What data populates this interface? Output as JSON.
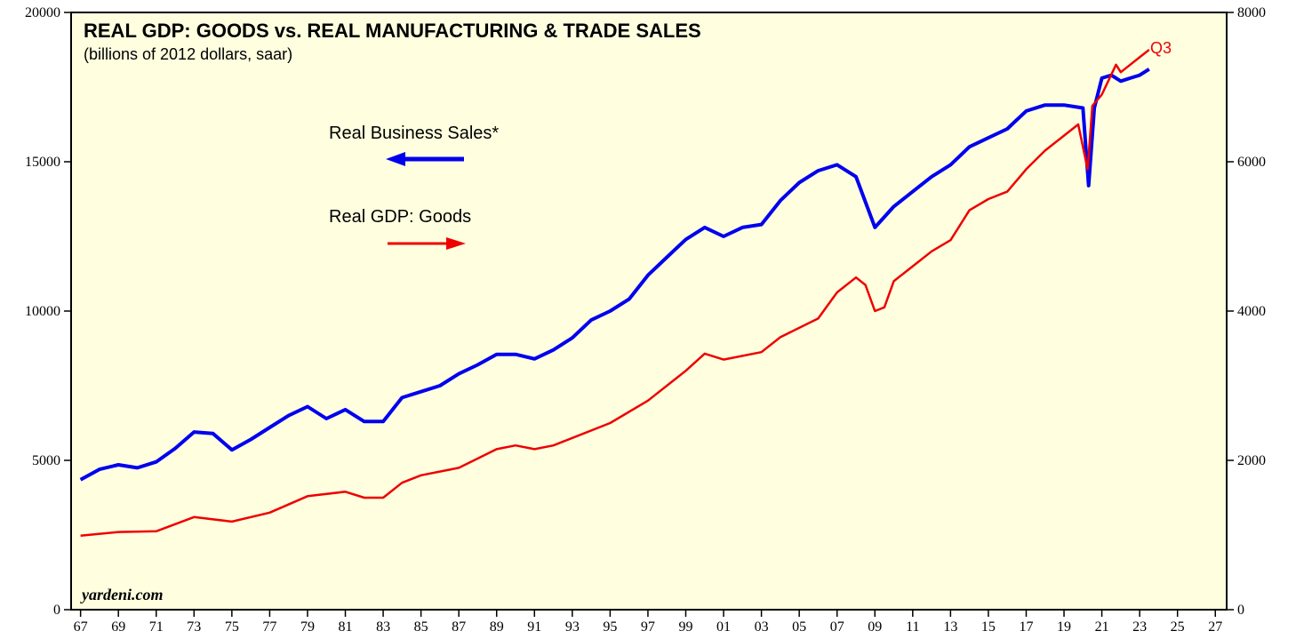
{
  "chart_data": {
    "type": "line",
    "title": "REAL GDP: GOODS vs. REAL MANUFACTURING & TRADE SALES",
    "subtitle": "(billions of 2012 dollars, saar)",
    "annotations": [
      "Real Business Sales*",
      "Real GDP: Goods",
      "Q3",
      "yardeni.com"
    ],
    "xlim": [
      1966.5,
      2027.6
    ],
    "xticks": [
      {
        "value": 1967,
        "label": "67"
      },
      {
        "value": 1969,
        "label": "69"
      },
      {
        "value": 1971,
        "label": "71"
      },
      {
        "value": 1973,
        "label": "73"
      },
      {
        "value": 1975,
        "label": "75"
      },
      {
        "value": 1977,
        "label": "77"
      },
      {
        "value": 1979,
        "label": "79"
      },
      {
        "value": 1981,
        "label": "81"
      },
      {
        "value": 1983,
        "label": "83"
      },
      {
        "value": 1985,
        "label": "85"
      },
      {
        "value": 1987,
        "label": "87"
      },
      {
        "value": 1989,
        "label": "89"
      },
      {
        "value": 1991,
        "label": "91"
      },
      {
        "value": 1993,
        "label": "93"
      },
      {
        "value": 1995,
        "label": "95"
      },
      {
        "value": 1997,
        "label": "97"
      },
      {
        "value": 1999,
        "label": "99"
      },
      {
        "value": 2001,
        "label": "01"
      },
      {
        "value": 2003,
        "label": "03"
      },
      {
        "value": 2005,
        "label": "05"
      },
      {
        "value": 2007,
        "label": "07"
      },
      {
        "value": 2009,
        "label": "09"
      },
      {
        "value": 2011,
        "label": "11"
      },
      {
        "value": 2013,
        "label": "13"
      },
      {
        "value": 2015,
        "label": "15"
      },
      {
        "value": 2017,
        "label": "17"
      },
      {
        "value": 2019,
        "label": "19"
      },
      {
        "value": 2021,
        "label": "21"
      },
      {
        "value": 2023,
        "label": "23"
      },
      {
        "value": 2025,
        "label": "25"
      },
      {
        "value": 2027,
        "label": "27"
      }
    ],
    "ylim": [
      0,
      20000
    ],
    "yticks": [
      0,
      5000,
      10000,
      15000,
      20000
    ],
    "y2lim": [
      0,
      8000
    ],
    "y2ticks": [
      0,
      2000,
      4000,
      6000,
      8000
    ],
    "series": [
      {
        "name": "Real Business Sales*",
        "color": "#0000ee",
        "x": [
          1967,
          1968,
          1969,
          1970,
          1971,
          1972,
          1973,
          1974,
          1975,
          1976,
          1977,
          1978,
          1979,
          1980,
          1981,
          1982,
          1983,
          1984,
          1985,
          1986,
          1987,
          1988,
          1989,
          1990,
          1991,
          1992,
          1993,
          1994,
          1995,
          1996,
          1997,
          1998,
          1999,
          2000,
          2001,
          2002,
          2003,
          2004,
          2005,
          2006,
          2007,
          2008,
          2009,
          2010,
          2011,
          2012,
          2013,
          2014,
          2015,
          2016,
          2017,
          2018,
          2019,
          2020,
          2020.3,
          2020.6,
          2021,
          2021.5,
          2022,
          2022.5,
          2023,
          2023.5
        ],
        "values": [
          4350,
          4700,
          4850,
          4750,
          4950,
          5400,
          5950,
          5900,
          5350,
          5700,
          6100,
          6500,
          6800,
          6400,
          6700,
          6300,
          6300,
          7100,
          7300,
          7500,
          7900,
          8200,
          8550,
          8550,
          8400,
          8700,
          9100,
          9700,
          10000,
          10400,
          11200,
          11800,
          12400,
          12800,
          12500,
          12800,
          12900,
          13700,
          14300,
          14700,
          14900,
          14500,
          12800,
          13500,
          14000,
          14500,
          14900,
          15500,
          15800,
          16100,
          16700,
          16900,
          16900,
          16800,
          14200,
          16800,
          17800,
          17900,
          17700,
          17800,
          17900,
          18100
        ]
      },
      {
        "name": "Real GDP: Goods",
        "color": "#ee0000",
        "axis": "y2",
        "x": [
          1967,
          1969,
          1971,
          1973,
          1975,
          1977,
          1979,
          1981,
          1982,
          1983,
          1984,
          1985,
          1987,
          1989,
          1990,
          1991,
          1992,
          1993,
          1995,
          1997,
          1999,
          2000,
          2001,
          2003,
          2004,
          2006,
          2007,
          2008,
          2008.5,
          2009,
          2009.5,
          2010,
          2011,
          2012,
          2013,
          2014,
          2015,
          2016,
          2017,
          2018,
          2019,
          2019.75,
          2020.25,
          2020.5,
          2021,
          2021.75,
          2022,
          2022.5,
          2023,
          2023.5
        ],
        "values": [
          990,
          1040,
          1050,
          1240,
          1180,
          1300,
          1520,
          1580,
          1500,
          1500,
          1700,
          1800,
          1900,
          2150,
          2200,
          2150,
          2200,
          2300,
          2500,
          2800,
          3200,
          3430,
          3350,
          3450,
          3650,
          3900,
          4250,
          4450,
          4350,
          4000,
          4050,
          4400,
          4600,
          4800,
          4950,
          5350,
          5500,
          5600,
          5900,
          6150,
          6350,
          6500,
          5900,
          6750,
          6900,
          7300,
          7200,
          7300,
          7400,
          7500
        ]
      }
    ]
  }
}
